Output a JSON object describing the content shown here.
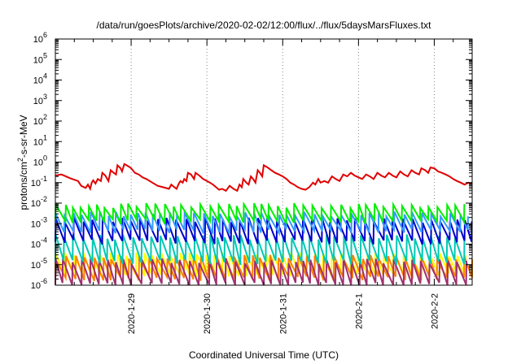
{
  "chart_data": {
    "type": "line",
    "title": "/data/run/goesPlots/archive/2020-02-02/12:00/flux/../flux/5daysMarsFluxes.txt",
    "xlabel": "Coordinated Universal Time (UTC)",
    "ylabel_parts": [
      "protons/cm",
      "2",
      "-s-sr-MeV"
    ],
    "y_scale": "log",
    "ylim": [
      1e-06,
      1000000.0
    ],
    "y_ticks": [
      {
        "base": "10",
        "exp": "-6",
        "value": 1e-06
      },
      {
        "base": "10",
        "exp": "-5",
        "value": 1e-05
      },
      {
        "base": "10",
        "exp": "-4",
        "value": 0.0001
      },
      {
        "base": "10",
        "exp": "-3",
        "value": 0.001
      },
      {
        "base": "10",
        "exp": "-2",
        "value": 0.01
      },
      {
        "base": "10",
        "exp": "-1",
        "value": 0.1
      },
      {
        "base": "10",
        "exp": "0",
        "value": 1
      },
      {
        "base": "10",
        "exp": "1",
        "value": 10
      },
      {
        "base": "10",
        "exp": "2",
        "value": 100
      },
      {
        "base": "10",
        "exp": "3",
        "value": 1000
      },
      {
        "base": "10",
        "exp": "4",
        "value": 10000
      },
      {
        "base": "10",
        "exp": "5",
        "value": 100000
      },
      {
        "base": "10",
        "exp": "6",
        "value": 1000000
      }
    ],
    "xlim": [
      "2020-01-28 00:00",
      "2020-02-02 12:00"
    ],
    "x_ticks": [
      {
        "label": "2020-1-29",
        "value": "2020-01-29 00:00"
      },
      {
        "label": "2020-1-30",
        "value": "2020-01-30 00:00"
      },
      {
        "label": "2020-1-31",
        "value": "2020-01-31 00:00"
      },
      {
        "label": "2020-2-1",
        "value": "2020-02-01 00:00"
      },
      {
        "label": "2020-2-2",
        "value": "2020-02-02 00:00"
      }
    ],
    "grid": "dotted vertical at day ticks",
    "legend": "none",
    "series": [
      {
        "color": "#e00000",
        "values": [
          [
            0.0,
            0.22
          ],
          [
            0.08,
            0.25
          ],
          [
            0.2,
            0.16
          ],
          [
            0.3,
            0.12
          ],
          [
            0.34,
            0.07
          ],
          [
            0.4,
            0.055
          ],
          [
            0.43,
            0.08
          ],
          [
            0.46,
            0.05
          ],
          [
            0.48,
            0.1
          ],
          [
            0.5,
            0.13
          ],
          [
            0.53,
            0.09
          ],
          [
            0.56,
            0.15
          ],
          [
            0.6,
            0.12
          ],
          [
            0.62,
            0.3
          ],
          [
            0.66,
            0.22
          ],
          [
            0.7,
            0.12
          ],
          [
            0.73,
            0.4
          ],
          [
            0.77,
            0.3
          ],
          [
            0.8,
            0.25
          ],
          [
            0.82,
            0.7
          ],
          [
            0.86,
            0.5
          ],
          [
            0.88,
            0.35
          ],
          [
            0.91,
            0.8
          ],
          [
            0.94,
            0.7
          ],
          [
            0.97,
            0.6
          ],
          [
            1.0,
            0.5
          ],
          [
            1.05,
            0.3
          ],
          [
            1.1,
            0.25
          ],
          [
            1.15,
            0.18
          ],
          [
            1.2,
            0.15
          ],
          [
            1.28,
            0.1
          ],
          [
            1.35,
            0.07
          ],
          [
            1.42,
            0.06
          ],
          [
            1.5,
            0.05
          ],
          [
            1.53,
            0.08
          ],
          [
            1.57,
            0.06
          ],
          [
            1.6,
            0.05
          ],
          [
            1.63,
            0.09
          ],
          [
            1.65,
            0.12
          ],
          [
            1.68,
            0.1
          ],
          [
            1.7,
            0.15
          ],
          [
            1.73,
            0.12
          ],
          [
            1.75,
            0.3
          ],
          [
            1.79,
            0.25
          ],
          [
            1.83,
            0.15
          ],
          [
            1.85,
            0.3
          ],
          [
            1.9,
            0.22
          ],
          [
            1.95,
            0.15
          ],
          [
            2.0,
            0.12
          ],
          [
            2.04,
            0.1
          ],
          [
            2.08,
            0.08
          ],
          [
            2.12,
            0.06
          ],
          [
            2.16,
            0.045
          ],
          [
            2.2,
            0.05
          ],
          [
            2.25,
            0.04
          ],
          [
            2.3,
            0.07
          ],
          [
            2.35,
            0.05
          ],
          [
            2.4,
            0.04
          ],
          [
            2.43,
            0.08
          ],
          [
            2.46,
            0.06
          ],
          [
            2.48,
            0.15
          ],
          [
            2.52,
            0.1
          ],
          [
            2.55,
            0.08
          ],
          [
            2.58,
            0.2
          ],
          [
            2.61,
            0.15
          ],
          [
            2.64,
            0.1
          ],
          [
            2.67,
            0.4
          ],
          [
            2.7,
            0.3
          ],
          [
            2.73,
            0.2
          ],
          [
            2.75,
            0.7
          ],
          [
            2.8,
            0.55
          ],
          [
            2.85,
            0.4
          ],
          [
            2.9,
            0.3
          ],
          [
            2.95,
            0.25
          ],
          [
            3.0,
            0.2
          ],
          [
            3.05,
            0.15
          ],
          [
            3.1,
            0.1
          ],
          [
            3.15,
            0.08
          ],
          [
            3.2,
            0.06
          ],
          [
            3.25,
            0.05
          ],
          [
            3.3,
            0.045
          ],
          [
            3.35,
            0.06
          ],
          [
            3.4,
            0.1
          ],
          [
            3.43,
            0.08
          ],
          [
            3.47,
            0.15
          ],
          [
            3.5,
            0.1
          ],
          [
            3.55,
            0.12
          ],
          [
            3.6,
            0.1
          ],
          [
            3.65,
            0.2
          ],
          [
            3.7,
            0.15
          ],
          [
            3.75,
            0.12
          ],
          [
            3.8,
            0.25
          ],
          [
            3.85,
            0.2
          ],
          [
            3.9,
            0.3
          ],
          [
            3.95,
            0.22
          ],
          [
            4.0,
            0.18
          ],
          [
            4.05,
            0.15
          ],
          [
            4.1,
            0.25
          ],
          [
            4.15,
            0.2
          ],
          [
            4.2,
            0.15
          ],
          [
            4.25,
            0.3
          ],
          [
            4.3,
            0.22
          ],
          [
            4.35,
            0.18
          ],
          [
            4.4,
            0.3
          ],
          [
            4.45,
            0.22
          ],
          [
            4.5,
            0.18
          ],
          [
            4.55,
            0.35
          ],
          [
            4.6,
            0.25
          ],
          [
            4.65,
            0.2
          ],
          [
            4.7,
            0.4
          ],
          [
            4.75,
            0.3
          ],
          [
            4.8,
            0.25
          ],
          [
            4.83,
            0.5
          ],
          [
            4.88,
            0.4
          ],
          [
            4.92,
            0.3
          ],
          [
            4.95,
            0.55
          ],
          [
            5.0,
            0.5
          ],
          [
            5.05,
            0.35
          ],
          [
            5.1,
            0.3
          ],
          [
            5.15,
            0.25
          ],
          [
            5.2,
            0.2
          ],
          [
            5.25,
            0.15
          ],
          [
            5.3,
            0.12
          ],
          [
            5.35,
            0.1
          ],
          [
            5.4,
            0.08
          ],
          [
            5.45,
            0.1
          ],
          [
            5.48,
            0.09
          ],
          [
            5.5,
            0.1
          ]
        ]
      },
      {
        "color": "#00ee00",
        "values": "sawtooth ~1e-3 to 1e-2"
      },
      {
        "color": "#3399ff",
        "values": "sawtooth ~4e-4 to 4e-3"
      },
      {
        "color": "#0000cc",
        "values": "sawtooth ~1e-4 to 2e-3"
      },
      {
        "color": "#00c8b4",
        "values": "sawtooth ~1e-5 to 3e-4"
      },
      {
        "color": "#ffff00",
        "values": "sawtooth ~3e-6 to 4e-5"
      },
      {
        "color": "#ff8000",
        "values": "sawtooth ~2e-6 to 3e-5"
      },
      {
        "color": "#a03070",
        "values": "sawtooth ~1e-6 to 2e-5"
      }
    ]
  }
}
